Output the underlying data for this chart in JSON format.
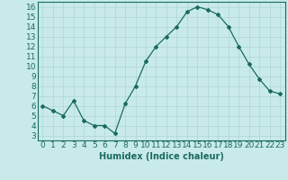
{
  "x": [
    0,
    1,
    2,
    3,
    4,
    5,
    6,
    7,
    8,
    9,
    10,
    11,
    12,
    13,
    14,
    15,
    16,
    17,
    18,
    19,
    20,
    21,
    22,
    23
  ],
  "y": [
    6.0,
    5.5,
    5.0,
    6.5,
    4.5,
    4.0,
    4.0,
    3.2,
    6.2,
    8.0,
    10.5,
    12.0,
    13.0,
    14.0,
    15.5,
    16.0,
    15.7,
    15.2,
    14.0,
    12.0,
    10.2,
    8.7,
    7.5,
    7.2
  ],
  "xlabel": "Humidex (Indice chaleur)",
  "xlim": [
    -0.5,
    23.5
  ],
  "ylim": [
    2.5,
    16.5
  ],
  "yticks": [
    3,
    4,
    5,
    6,
    7,
    8,
    9,
    10,
    11,
    12,
    13,
    14,
    15,
    16
  ],
  "xticks": [
    0,
    1,
    2,
    3,
    4,
    5,
    6,
    7,
    8,
    9,
    10,
    11,
    12,
    13,
    14,
    15,
    16,
    17,
    18,
    19,
    20,
    21,
    22,
    23
  ],
  "line_color": "#1a6b5e",
  "marker": "D",
  "marker_size": 2.0,
  "bg_color": "#c8eaea",
  "grid_color": "#b0d4d4",
  "xlabel_fontsize": 7,
  "tick_fontsize": 6.5
}
